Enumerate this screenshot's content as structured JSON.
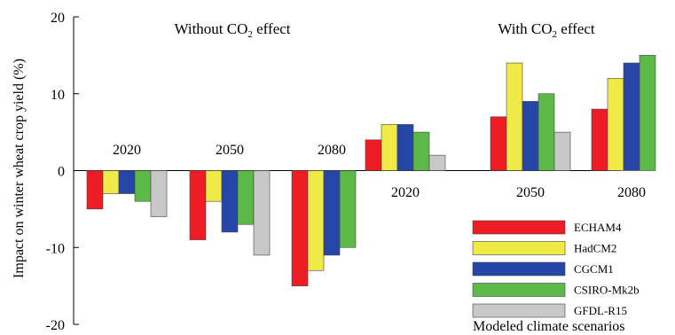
{
  "chart_data": {
    "type": "bar",
    "ylabel": "Impact on winter wheat crop yield (%)",
    "ylim": [
      -20,
      20
    ],
    "yticks": [
      20,
      10,
      0,
      -10,
      -20
    ],
    "grid": false,
    "legend": {
      "title": "Modeled climate scenarios",
      "placement": "bottom-right"
    },
    "series": [
      {
        "name": "ECHAM4",
        "color": "#ee1c24"
      },
      {
        "name": "HadCM2",
        "color": "#f0ea48"
      },
      {
        "name": "CGCM1",
        "color": "#2546a6"
      },
      {
        "name": "CSIRO-Mk2b",
        "color": "#5cb948"
      },
      {
        "name": "GFDL-R15",
        "color": "#c8c8c8"
      }
    ],
    "panels": [
      {
        "title_prefix": "Without CO",
        "title_sub": "2",
        "title_suffix": " effect",
        "categories": [
          "2020",
          "2050",
          "2080"
        ],
        "values": [
          [
            -5,
            -3,
            -3,
            -4,
            -6
          ],
          [
            -9,
            -4,
            -8,
            -7,
            -11
          ],
          [
            -15,
            -13,
            -11,
            -10,
            null
          ]
        ]
      },
      {
        "title_prefix": "With CO",
        "title_sub": "2",
        "title_suffix": " effect",
        "categories": [
          "2020",
          "2050",
          "2080"
        ],
        "values": [
          [
            4,
            6,
            6,
            5,
            2
          ],
          [
            7,
            14,
            9,
            10,
            5
          ],
          [
            8,
            12,
            14,
            15,
            null
          ]
        ]
      }
    ]
  }
}
